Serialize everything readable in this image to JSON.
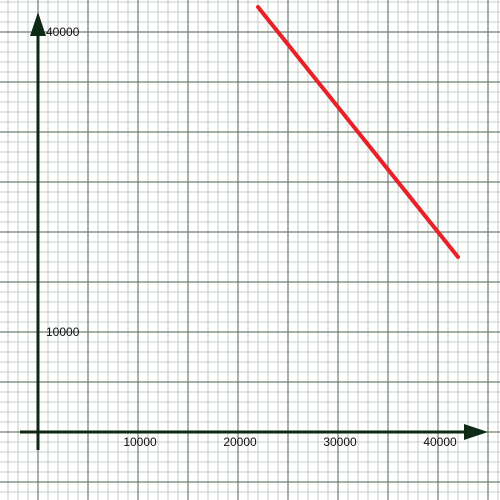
{
  "chart_data": {
    "type": "line",
    "title": "",
    "xlabel": "",
    "ylabel": "",
    "xlim": [
      -300,
      46000
    ],
    "ylim": [
      -1300,
      42500
    ],
    "grid": true,
    "x_ticks": [
      {
        "value": 10000,
        "label": "10000"
      },
      {
        "value": 20000,
        "label": "20000"
      },
      {
        "value": 30000,
        "label": "30000"
      },
      {
        "value": 40000,
        "label": "40000"
      }
    ],
    "y_ticks": [
      {
        "value": 10000,
        "label": "10000"
      },
      {
        "value": 40000,
        "label": "40000"
      }
    ],
    "series": [
      {
        "color": "#e8202a",
        "x": [
          22000,
          42000
        ],
        "y": [
          42500,
          17500
        ]
      }
    ]
  },
  "colors": {
    "minor_grid": "#b7c2b9",
    "major_grid": "#6f7f72",
    "axis": "#0f2a14",
    "background": "#ffffff"
  }
}
